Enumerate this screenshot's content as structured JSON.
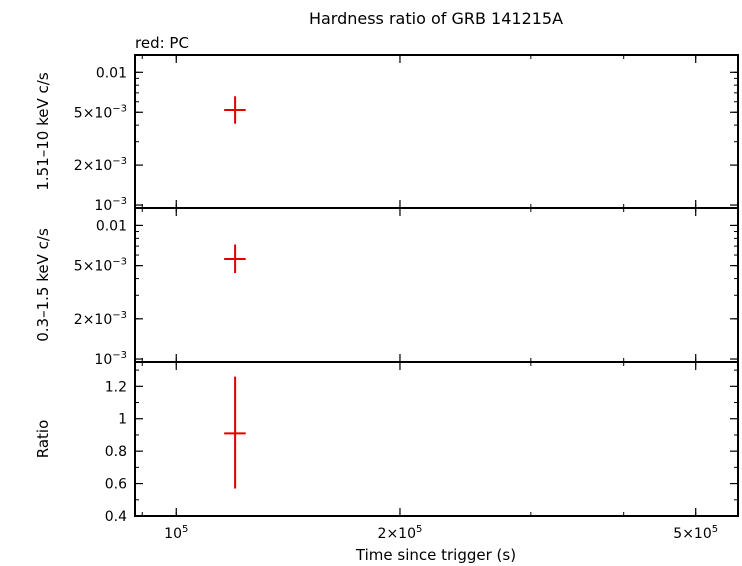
{
  "chart_data": {
    "type": "scatter",
    "title": "Hardness ratio of GRB 141215A",
    "subtitle": "red: PC",
    "xlabel": "Time since trigger (s)",
    "xscale": "log",
    "xlim": [
      88000,
      570000
    ],
    "xticks": [
      {
        "value": 100000,
        "label": "10",
        "sup": "5"
      },
      {
        "value": 200000,
        "label": "2×10",
        "sup": "5"
      },
      {
        "value": 500000,
        "label": "5×10",
        "sup": "5"
      }
    ],
    "series_color": "#e00000",
    "panels": [
      {
        "name": "hard",
        "ylabel": "1.51–10 keV c/s",
        "yscale": "log",
        "ylim": [
          0.00095,
          0.0135
        ],
        "yticks": [
          {
            "value": 0.01,
            "label": "0.01",
            "sup": ""
          },
          {
            "value": 0.005,
            "label": "5×10",
            "sup": "−3"
          },
          {
            "value": 0.002,
            "label": "2×10",
            "sup": "−3"
          },
          {
            "value": 0.001,
            "label": "10",
            "sup": "−3"
          }
        ],
        "points": [
          {
            "x": 120000,
            "xerr": [
              116000,
              124000
            ],
            "y": 0.0052,
            "yerr": [
              0.0041,
              0.0066
            ]
          }
        ]
      },
      {
        "name": "soft",
        "ylabel": "0.3–1.5 keV c/s",
        "yscale": "log",
        "ylim": [
          0.00095,
          0.0135
        ],
        "yticks": [
          {
            "value": 0.01,
            "label": "0.01",
            "sup": ""
          },
          {
            "value": 0.005,
            "label": "5×10",
            "sup": "−3"
          },
          {
            "value": 0.002,
            "label": "2×10",
            "sup": "−3"
          },
          {
            "value": 0.001,
            "label": "10",
            "sup": "−3"
          }
        ],
        "points": [
          {
            "x": 120000,
            "xerr": [
              116000,
              124000
            ],
            "y": 0.0056,
            "yerr": [
              0.0044,
              0.0072
            ]
          }
        ]
      },
      {
        "name": "ratio",
        "ylabel": "Ratio",
        "yscale": "linear",
        "ylim": [
          0.4,
          1.35
        ],
        "yticks": [
          {
            "value": 0.4,
            "label": "0.4",
            "sup": ""
          },
          {
            "value": 0.6,
            "label": "0.6",
            "sup": ""
          },
          {
            "value": 0.8,
            "label": "0.8",
            "sup": ""
          },
          {
            "value": 1.0,
            "label": "1",
            "sup": ""
          },
          {
            "value": 1.2,
            "label": "1.2",
            "sup": ""
          }
        ],
        "points": [
          {
            "x": 120000,
            "xerr": [
              116000,
              124000
            ],
            "y": 0.91,
            "yerr": [
              0.57,
              1.26
            ]
          }
        ]
      }
    ]
  }
}
